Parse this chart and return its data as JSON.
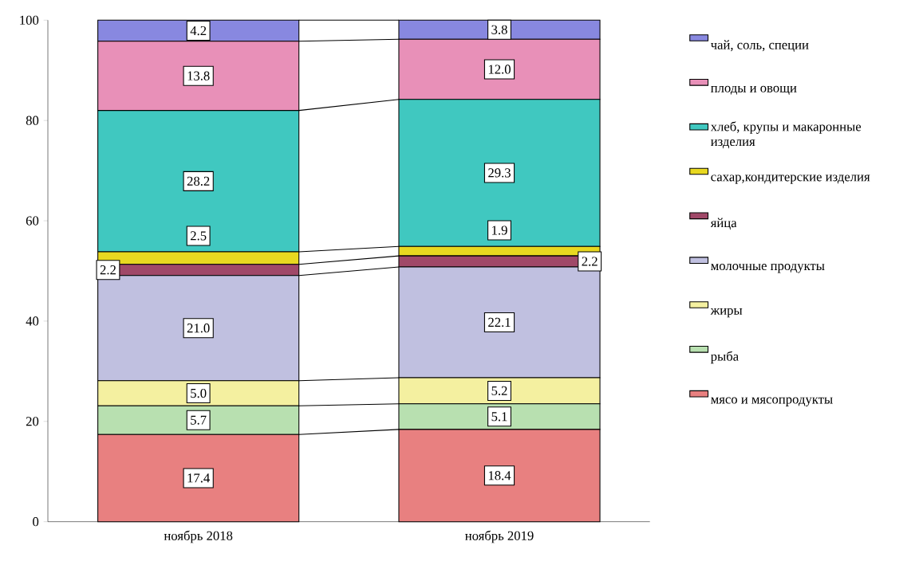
{
  "chart_data": {
    "type": "bar",
    "stacked": true,
    "categories": [
      "ноябрь 2018",
      "ноябрь 2019"
    ],
    "series": [
      {
        "name": "мясо и мясопродукты",
        "color": "#e88080",
        "values": [
          17.4,
          18.4
        ],
        "value_labels": [
          "17.4",
          "18.4"
        ]
      },
      {
        "name": "рыба",
        "color": "#b8e0b0",
        "values": [
          5.7,
          5.1
        ],
        "value_labels": [
          "5.7",
          "5.1"
        ]
      },
      {
        "name": "жиры",
        "color": "#f4f0a0",
        "values": [
          5.0,
          5.2
        ],
        "value_labels": [
          "5.0",
          "5.2"
        ]
      },
      {
        "name": "молочные продукты",
        "color": "#c0c0e0",
        "values": [
          21.0,
          22.1
        ],
        "value_labels": [
          "21.0",
          "22.1"
        ]
      },
      {
        "name": "яйца",
        "color": "#a04868",
        "values": [
          2.2,
          2.2
        ],
        "value_labels": [
          "2.2",
          "2.2"
        ]
      },
      {
        "name": "сахар,кондитерские изделия",
        "color": "#e8d820",
        "values": [
          2.5,
          1.9
        ],
        "value_labels": [
          "2.5",
          "1.9"
        ]
      },
      {
        "name": "хлеб, крупы и макаронные изделия",
        "color": "#40c8c0",
        "values": [
          28.2,
          29.3
        ],
        "value_labels": [
          "28.2",
          "29.3"
        ]
      },
      {
        "name": "плоды и овощи",
        "color": "#e890b8",
        "values": [
          13.8,
          12.0
        ],
        "value_labels": [
          "13.8",
          "12.0"
        ]
      },
      {
        "name": "чай, соль, специи",
        "color": "#8888e0",
        "values": [
          4.2,
          3.8
        ],
        "value_labels": [
          "4.2",
          "3.8"
        ]
      }
    ],
    "ylim": [
      0,
      100
    ],
    "yticks": [
      0,
      20,
      40,
      60,
      80,
      100
    ],
    "legend": "right"
  }
}
